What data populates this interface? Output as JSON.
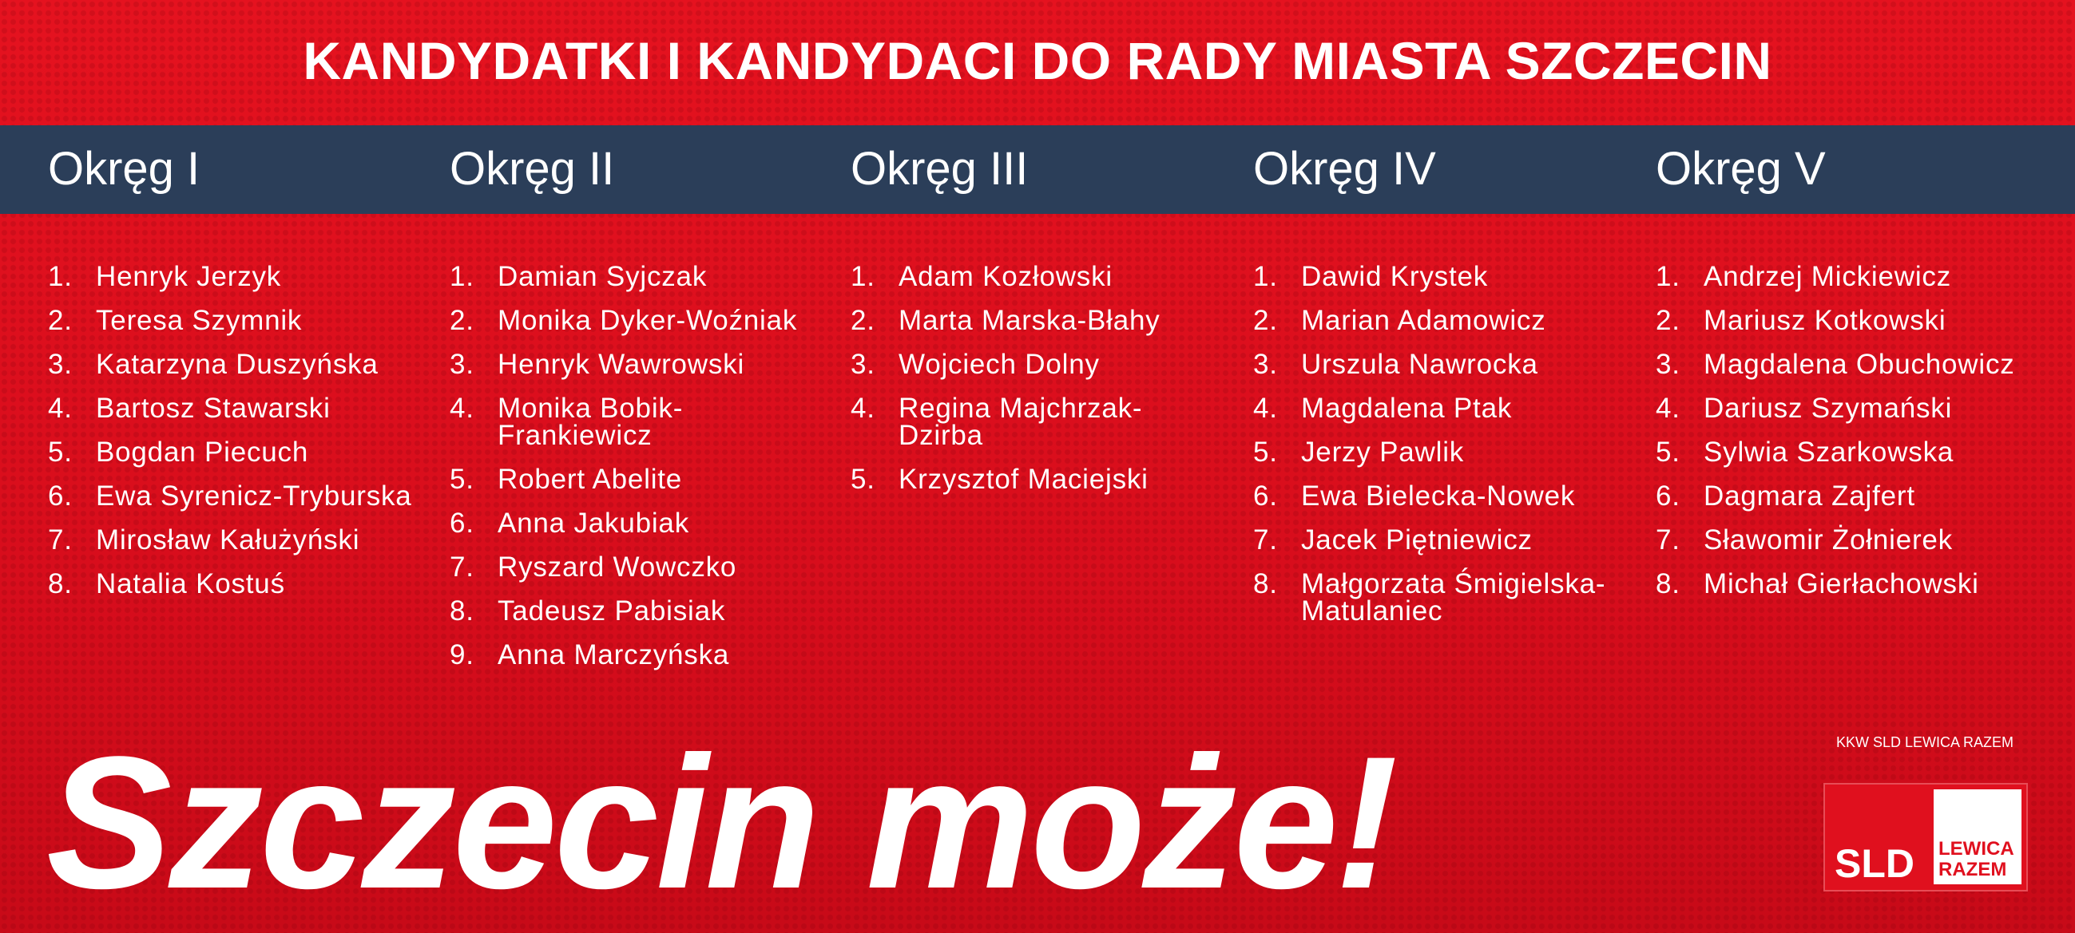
{
  "header": {
    "title": "KANDYDATKI I KANDYDACI DO RADY MIASTA SZCZECIN"
  },
  "districts": [
    {
      "name": "Okręg I",
      "candidates": [
        {
          "no": "1.",
          "name": "Henryk Jerzyk"
        },
        {
          "no": "2.",
          "name": "Teresa Szymnik"
        },
        {
          "no": "3.",
          "name": "Katarzyna Duszyńska"
        },
        {
          "no": "4.",
          "name": "Bartosz Stawarski"
        },
        {
          "no": "5.",
          "name": "Bogdan Piecuch"
        },
        {
          "no": "6.",
          "name": "Ewa Syrenicz-Tryburska"
        },
        {
          "no": "7.",
          "name": "Mirosław Kałużyński"
        },
        {
          "no": "8.",
          "name": "Natalia Kostuś"
        }
      ]
    },
    {
      "name": "Okręg II",
      "candidates": [
        {
          "no": "1.",
          "name": "Damian Syjczak"
        },
        {
          "no": "2.",
          "name": "Monika Dyker-Woźniak"
        },
        {
          "no": "3.",
          "name": "Henryk Wawrowski"
        },
        {
          "no": "4.",
          "name": "Monika Bobik-Frankiewicz"
        },
        {
          "no": "5.",
          "name": "Robert Abelite"
        },
        {
          "no": "6.",
          "name": "Anna Jakubiak"
        },
        {
          "no": "7.",
          "name": "Ryszard Wowczko"
        },
        {
          "no": "8.",
          "name": "Tadeusz Pabisiak"
        },
        {
          "no": "9.",
          "name": "Anna Marczyńska"
        }
      ]
    },
    {
      "name": "Okręg III",
      "candidates": [
        {
          "no": "1.",
          "name": "Adam Kozłowski"
        },
        {
          "no": "2.",
          "name": "Marta Marska-Błahy"
        },
        {
          "no": "3.",
          "name": "Wojciech Dolny"
        },
        {
          "no": "4.",
          "name": "Regina Majchrzak-Dzirba"
        },
        {
          "no": "5.",
          "name": "Krzysztof Maciejski"
        }
      ]
    },
    {
      "name": "Okręg IV",
      "candidates": [
        {
          "no": "1.",
          "name": "Dawid Krystek"
        },
        {
          "no": "2.",
          "name": "Marian Adamowicz"
        },
        {
          "no": "3.",
          "name": "Urszula Nawrocka"
        },
        {
          "no": "4.",
          "name": "Magdalena Ptak"
        },
        {
          "no": "5.",
          "name": "Jerzy Pawlik"
        },
        {
          "no": "6.",
          "name": "Ewa Bielecka-Nowek"
        },
        {
          "no": "7.",
          "name": "Jacek Piętniewicz"
        },
        {
          "no": "8.",
          "name": "Małgorzata Śmigielska-Matulaniec"
        }
      ]
    },
    {
      "name": "Okręg V",
      "candidates": [
        {
          "no": "1.",
          "name": "Andrzej Mickiewicz"
        },
        {
          "no": "2.",
          "name": "Mariusz Kotkowski"
        },
        {
          "no": "3.",
          "name": "Magdalena Obuchowicz"
        },
        {
          "no": "4.",
          "name": "Dariusz Szymański"
        },
        {
          "no": "5.",
          "name": "Sylwia Szarkowska"
        },
        {
          "no": "6.",
          "name": "Dagmara Zajfert"
        },
        {
          "no": "7.",
          "name": "Sławomir Żołnierek"
        },
        {
          "no": "8.",
          "name": "Michał Gierłachowski"
        }
      ]
    }
  ],
  "slogan": "Szczecin może!",
  "footer": {
    "committee": "KKW SLD LEWICA RAZEM",
    "logo_left": "SLD",
    "logo_right": "LEWICA RAZEM"
  }
}
